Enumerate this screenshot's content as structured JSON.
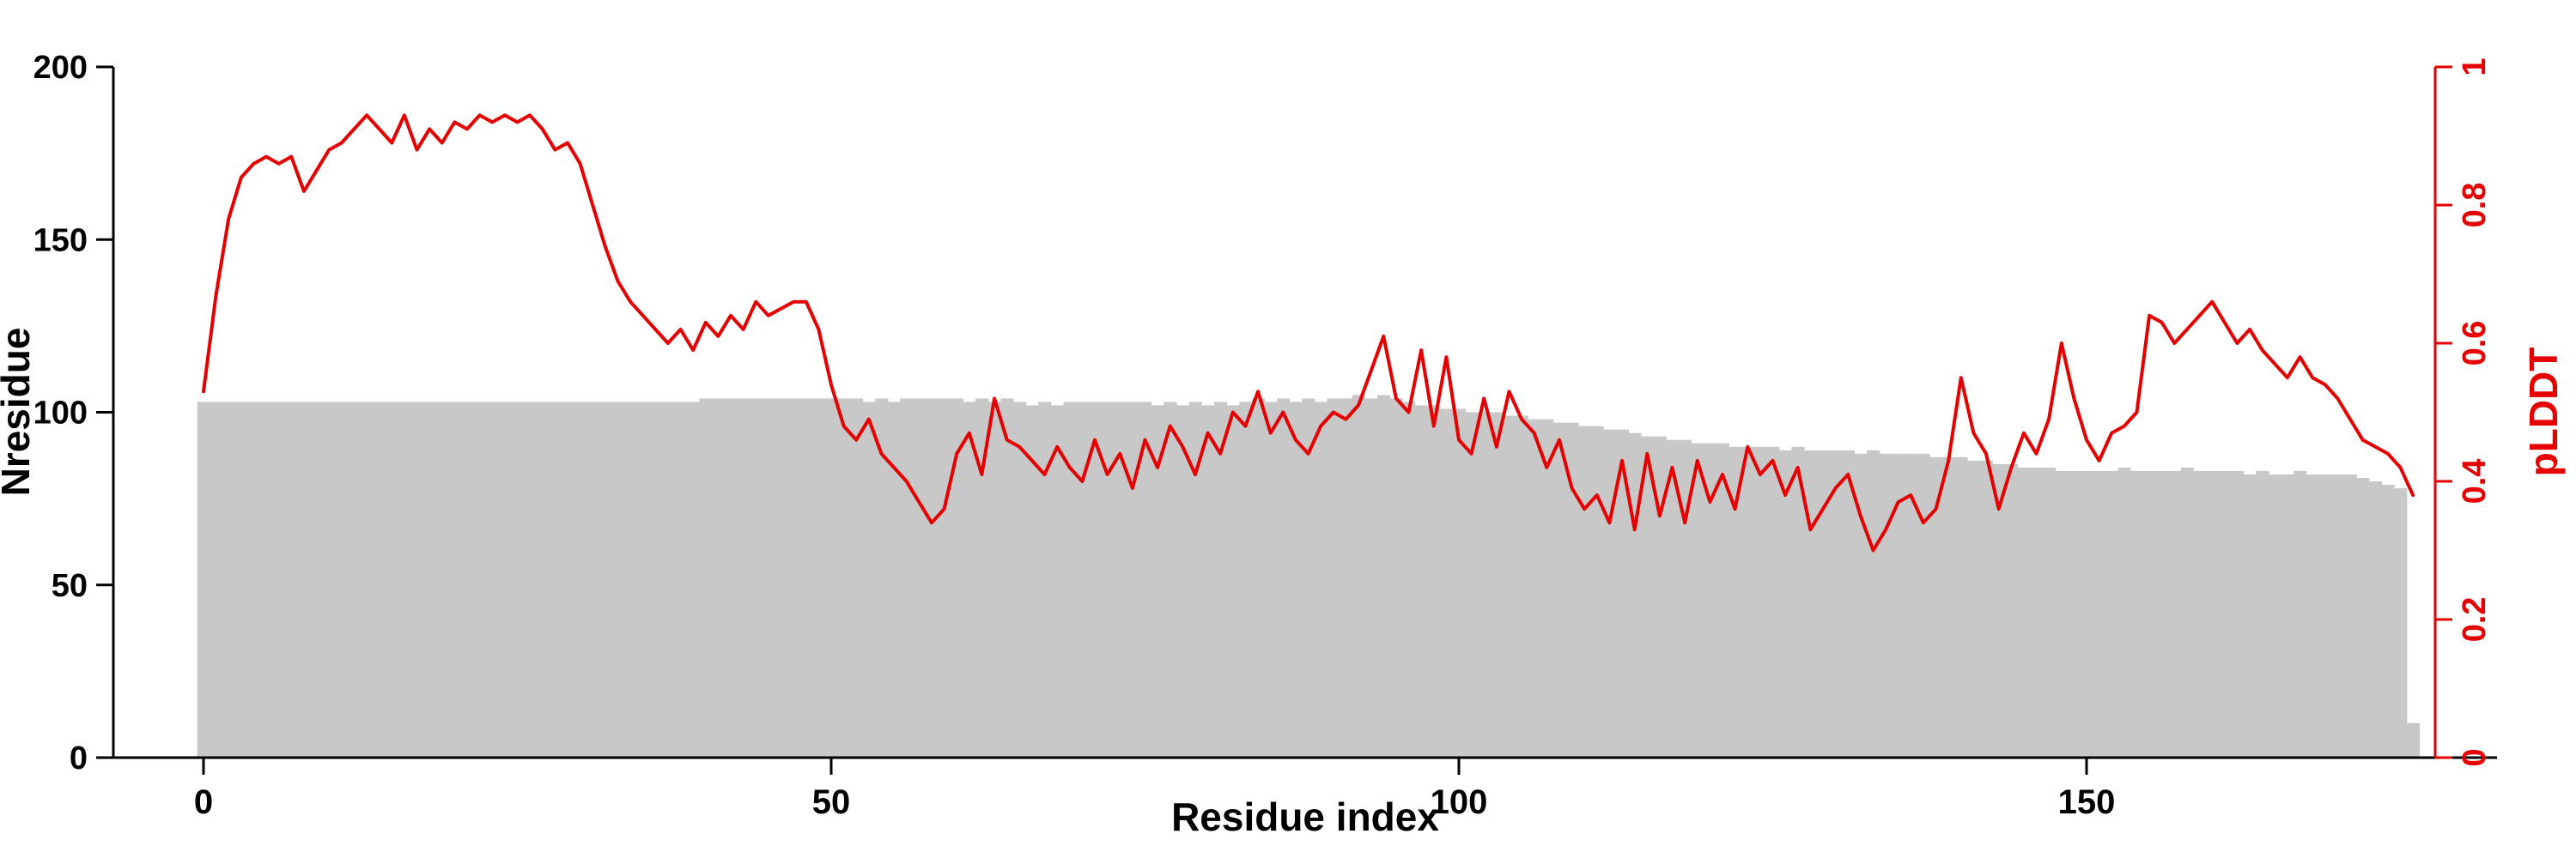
{
  "page": {
    "background": "#ffffff"
  },
  "chart_data": {
    "type": "bar+line",
    "title": "",
    "xlabel": "Residue index",
    "x_tick_labels": [
      "0",
      "50",
      "100",
      "150"
    ],
    "x_ticks": [
      0,
      50,
      100,
      150
    ],
    "xlim": [
      -8,
      183
    ],
    "x_start": 0,
    "x_step": 1,
    "n_points": 177,
    "grid": false,
    "legend": "none",
    "left_axis": {
      "label": "Nresidue",
      "range": [
        0,
        200
      ],
      "ticks": [
        0,
        50,
        100,
        150,
        200
      ],
      "tick_labels": [
        "0",
        "50",
        "100",
        "150",
        "200"
      ],
      "color": "#000000"
    },
    "right_axis": {
      "label": "pLDDT",
      "range": [
        0,
        1
      ],
      "ticks": [
        0,
        0.2,
        0.4,
        0.6,
        0.8,
        1
      ],
      "tick_labels": [
        "0",
        "0.2",
        "0.4",
        "0.6",
        "0.8",
        "1"
      ],
      "color": "#e60000"
    },
    "series": [
      {
        "name": "Nresidue",
        "type": "bar",
        "axis": "left",
        "color": "#c8c8c8",
        "values": [
          103,
          103,
          103,
          103,
          103,
          103,
          103,
          103,
          103,
          103,
          103,
          103,
          103,
          103,
          103,
          103,
          103,
          103,
          103,
          103,
          103,
          103,
          103,
          103,
          103,
          103,
          103,
          103,
          103,
          103,
          103,
          103,
          103,
          103,
          103,
          103,
          103,
          103,
          103,
          103,
          104,
          104,
          104,
          104,
          104,
          104,
          104,
          104,
          104,
          104,
          104,
          104,
          104,
          103,
          104,
          103,
          104,
          104,
          104,
          104,
          104,
          103,
          104,
          103,
          104,
          103,
          102,
          103,
          102,
          103,
          103,
          103,
          103,
          103,
          103,
          103,
          102,
          103,
          102,
          103,
          102,
          103,
          102,
          103,
          104,
          103,
          104,
          103,
          104,
          103,
          104,
          104,
          105,
          104,
          105,
          104,
          103,
          102,
          102,
          101,
          101,
          100,
          100,
          100,
          99,
          99,
          98,
          98,
          97,
          97,
          96,
          96,
          95,
          95,
          94,
          93,
          93,
          92,
          92,
          91,
          91,
          91,
          90,
          90,
          90,
          90,
          89,
          90,
          89,
          89,
          89,
          89,
          88,
          89,
          88,
          88,
          88,
          88,
          87,
          87,
          87,
          86,
          86,
          85,
          85,
          84,
          84,
          84,
          83,
          83,
          83,
          83,
          83,
          84,
          83,
          83,
          83,
          83,
          84,
          83,
          83,
          83,
          83,
          82,
          83,
          82,
          82,
          83,
          82,
          82,
          82,
          82,
          81,
          80,
          79,
          78,
          10
        ]
      },
      {
        "name": "pLDDT",
        "type": "line",
        "axis": "right",
        "color": "#e60000",
        "values": [
          0.53,
          0.67,
          0.78,
          0.84,
          0.86,
          0.87,
          0.86,
          0.87,
          0.82,
          0.85,
          0.88,
          0.89,
          0.91,
          0.93,
          0.91,
          0.89,
          0.93,
          0.88,
          0.91,
          0.89,
          0.92,
          0.91,
          0.93,
          0.92,
          0.93,
          0.92,
          0.93,
          0.91,
          0.88,
          0.89,
          0.86,
          0.8,
          0.74,
          0.69,
          0.66,
          0.64,
          0.62,
          0.6,
          0.62,
          0.59,
          0.63,
          0.61,
          0.64,
          0.62,
          0.66,
          0.64,
          0.65,
          0.66,
          0.66,
          0.62,
          0.54,
          0.48,
          0.46,
          0.49,
          0.44,
          0.42,
          0.4,
          0.37,
          0.34,
          0.36,
          0.44,
          0.47,
          0.41,
          0.52,
          0.46,
          0.45,
          0.43,
          0.41,
          0.45,
          0.42,
          0.4,
          0.46,
          0.41,
          0.44,
          0.39,
          0.46,
          0.42,
          0.48,
          0.45,
          0.41,
          0.47,
          0.44,
          0.5,
          0.48,
          0.53,
          0.47,
          0.5,
          0.46,
          0.44,
          0.48,
          0.5,
          0.49,
          0.51,
          0.56,
          0.61,
          0.52,
          0.5,
          0.59,
          0.48,
          0.58,
          0.46,
          0.44,
          0.52,
          0.45,
          0.53,
          0.49,
          0.47,
          0.42,
          0.46,
          0.39,
          0.36,
          0.38,
          0.34,
          0.43,
          0.33,
          0.44,
          0.35,
          0.42,
          0.34,
          0.43,
          0.37,
          0.41,
          0.36,
          0.45,
          0.41,
          0.43,
          0.38,
          0.42,
          0.33,
          0.36,
          0.39,
          0.41,
          0.35,
          0.3,
          0.33,
          0.37,
          0.38,
          0.34,
          0.36,
          0.43,
          0.55,
          0.47,
          0.44,
          0.36,
          0.42,
          0.47,
          0.44,
          0.49,
          0.6,
          0.52,
          0.46,
          0.43,
          0.47,
          0.48,
          0.5,
          0.64,
          0.63,
          0.6,
          0.62,
          0.64,
          0.66,
          0.63,
          0.6,
          0.62,
          0.59,
          0.57,
          0.55,
          0.58,
          0.55,
          0.54,
          0.52,
          0.49,
          0.46,
          0.45,
          0.44,
          0.42,
          0.38
        ]
      }
    ]
  }
}
